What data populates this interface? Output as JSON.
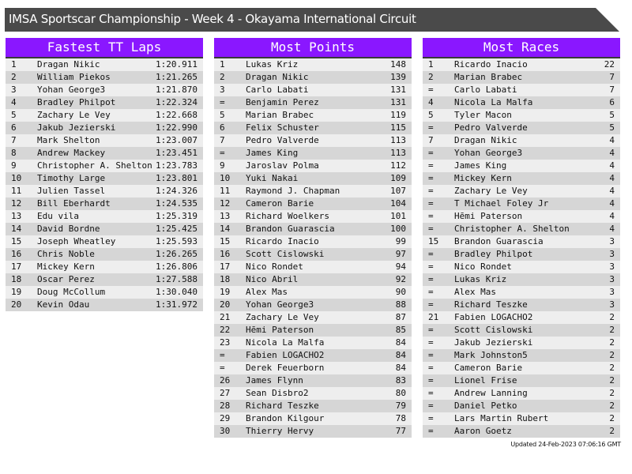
{
  "title": "IMSA Sportscar Championship - Week 4 - Okayama International Circuit",
  "colors": {
    "header_bg": "#8a17ff",
    "title_bg": "#4a4a4a",
    "row_light": "#eeeeee",
    "row_dark": "#d6d6d6"
  },
  "panels": [
    {
      "title": "Fastest TT Laps",
      "rows": [
        [
          "1",
          "Dragan Nikic",
          "1:20.911"
        ],
        [
          "2",
          "William Piekos",
          "1:21.265"
        ],
        [
          "3",
          "Yohan George3",
          "1:21.870"
        ],
        [
          "4",
          "Bradley Philpot",
          "1:22.324"
        ],
        [
          "5",
          "Zachary Le Vey",
          "1:22.668"
        ],
        [
          "6",
          "Jakub Jezierski",
          "1:22.990"
        ],
        [
          "7",
          "Mark Shelton",
          "1:23.007"
        ],
        [
          "8",
          "Andrew Mackey",
          "1:23.451"
        ],
        [
          "9",
          "Christopher A. Shelton",
          "1:23.783"
        ],
        [
          "10",
          "Timothy Large",
          "1:23.801"
        ],
        [
          "11",
          "Julien Tassel",
          "1:24.326"
        ],
        [
          "12",
          "Bill Eberhardt",
          "1:24.535"
        ],
        [
          "13",
          "Edu vila",
          "1:25.319"
        ],
        [
          "14",
          "David Bordne",
          "1:25.425"
        ],
        [
          "15",
          "Joseph Wheatley",
          "1:25.593"
        ],
        [
          "16",
          "Chris Noble",
          "1:26.265"
        ],
        [
          "17",
          "Mickey Kern",
          "1:26.806"
        ],
        [
          "18",
          "Oscar Perez",
          "1:27.588"
        ],
        [
          "19",
          "Doug McCollum",
          "1:30.040"
        ],
        [
          "20",
          "Kevin Odau",
          "1:31.972"
        ]
      ]
    },
    {
      "title": "Most Points",
      "rows": [
        [
          "1",
          "Lukas Kriz",
          "148"
        ],
        [
          "2",
          "Dragan Nikic",
          "139"
        ],
        [
          "3",
          "Carlo Labati",
          "131"
        ],
        [
          "=",
          "Benjamin Perez",
          "131"
        ],
        [
          "5",
          "Marian Brabec",
          "119"
        ],
        [
          "6",
          "Felix Schuster",
          "115"
        ],
        [
          "7",
          "Pedro Valverde",
          "113"
        ],
        [
          "=",
          "James King",
          "113"
        ],
        [
          "9",
          "Jaroslav Polma",
          "112"
        ],
        [
          "10",
          "Yuki Nakai",
          "109"
        ],
        [
          "11",
          "Raymond J. Chapman",
          "107"
        ],
        [
          "12",
          "Cameron Barie",
          "104"
        ],
        [
          "13",
          "Richard Woelkers",
          "101"
        ],
        [
          "14",
          "Brandon Guarascia",
          "100"
        ],
        [
          "15",
          "Ricardo Inacio",
          "99"
        ],
        [
          "16",
          "Scott Cislowski",
          "97"
        ],
        [
          "17",
          "Nico Rondet",
          "94"
        ],
        [
          "18",
          "Nico Abril",
          "92"
        ],
        [
          "19",
          "Alex Mas",
          "90"
        ],
        [
          "20",
          "Yohan George3",
          "88"
        ],
        [
          "21",
          "Zachary Le Vey",
          "87"
        ],
        [
          "22",
          "Hēmi Paterson",
          "85"
        ],
        [
          "23",
          "Nicola La Malfa",
          "84"
        ],
        [
          "=",
          "Fabien LOGACHO2",
          "84"
        ],
        [
          "=",
          "Derek Feuerborn",
          "84"
        ],
        [
          "26",
          "James Flynn",
          "83"
        ],
        [
          "27",
          "Sean Disbro2",
          "80"
        ],
        [
          "28",
          "Richard Teszke",
          "79"
        ],
        [
          "29",
          "Brandon Kilgour",
          "78"
        ],
        [
          "30",
          "Thierry Hervy",
          "77"
        ]
      ]
    },
    {
      "title": "Most Races",
      "rows": [
        [
          "1",
          "Ricardo Inacio",
          "22"
        ],
        [
          "2",
          "Marian Brabec",
          "7"
        ],
        [
          "=",
          "Carlo Labati",
          "7"
        ],
        [
          "4",
          "Nicola La Malfa",
          "6"
        ],
        [
          "5",
          "Tyler Macon",
          "5"
        ],
        [
          "=",
          "Pedro Valverde",
          "5"
        ],
        [
          "7",
          "Dragan Nikic",
          "4"
        ],
        [
          "=",
          "Yohan George3",
          "4"
        ],
        [
          "=",
          "James King",
          "4"
        ],
        [
          "=",
          "Mickey Kern",
          "4"
        ],
        [
          "=",
          "Zachary Le Vey",
          "4"
        ],
        [
          "=",
          "T Michael Foley Jr",
          "4"
        ],
        [
          "=",
          "Hēmi Paterson",
          "4"
        ],
        [
          "=",
          "Christopher A. Shelton",
          "4"
        ],
        [
          "15",
          "Brandon Guarascia",
          "3"
        ],
        [
          "=",
          "Bradley Philpot",
          "3"
        ],
        [
          "=",
          "Nico Rondet",
          "3"
        ],
        [
          "=",
          "Lukas Kriz",
          "3"
        ],
        [
          "=",
          "Alex Mas",
          "3"
        ],
        [
          "=",
          "Richard Teszke",
          "3"
        ],
        [
          "21",
          "Fabien LOGACHO2",
          "2"
        ],
        [
          "=",
          "Scott Cislowski",
          "2"
        ],
        [
          "=",
          "Jakub Jezierski",
          "2"
        ],
        [
          "=",
          "Mark Johnston5",
          "2"
        ],
        [
          "=",
          "Cameron Barie",
          "2"
        ],
        [
          "=",
          "Lionel Frise",
          "2"
        ],
        [
          "=",
          "Andrew Lanning",
          "2"
        ],
        [
          "=",
          "Daniel Petko",
          "2"
        ],
        [
          "=",
          "Lars Martin Rubert",
          "2"
        ],
        [
          "=",
          "Aaron Goetz",
          "2"
        ]
      ]
    }
  ],
  "footer": "Updated 24-Feb-2023 07:06:16 GMT"
}
